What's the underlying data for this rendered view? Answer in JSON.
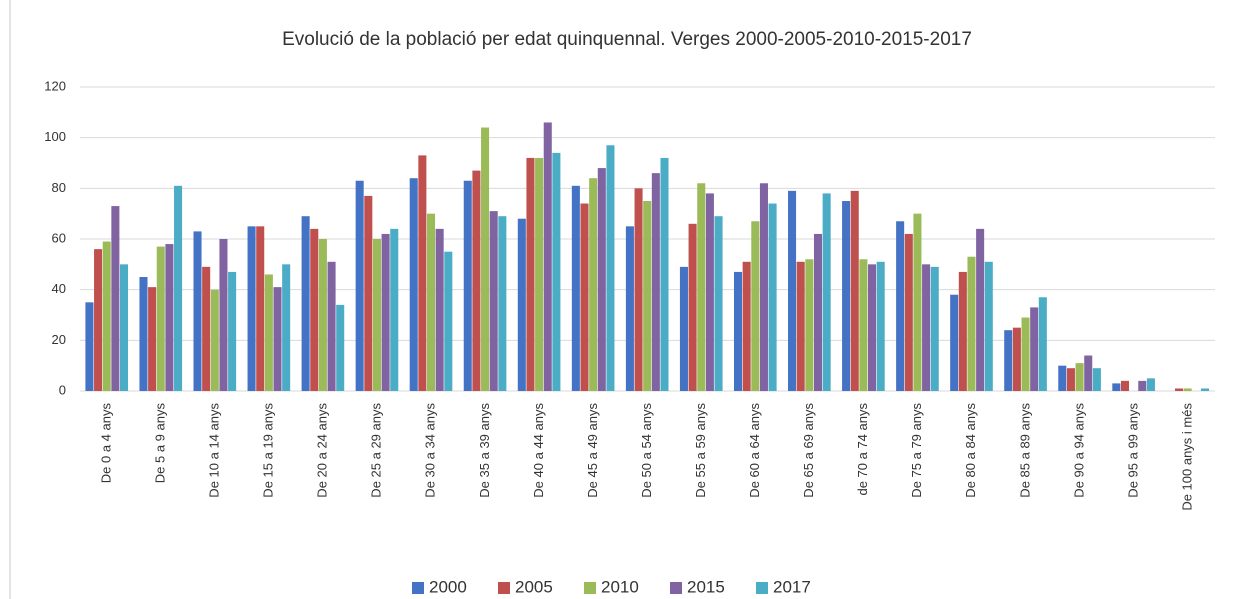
{
  "chart_data": {
    "type": "bar",
    "title": "Evolució de la població per edat quinquennal. Verges 2000-2005-2010-2015-2017",
    "categories": [
      "De 0 a 4 anys",
      "De 5 a 9 anys",
      "De 10 a 14 anys",
      "De 15 a 19 anys",
      "De 20 a 24 anys",
      "De 25 a 29 anys",
      "De 30 a 34 anys",
      "De 35 a 39 anys",
      "De 40 a 44 anys",
      "De 45 a 49 anys",
      "De 50 a 54 anys",
      "De 55 a 59 anys",
      "De 60 a 64 anys",
      "De 65 a 69 anys",
      "de 70 a 74 anys",
      "De 75 a 79 anys",
      "De 80 a 84 anys",
      "De 85 a 89 anys",
      "De 90 a 94 anys",
      "De 95 a 99 anys",
      "De 100 anys i més"
    ],
    "series": [
      {
        "name": "2000",
        "color": "#4472c4",
        "values": [
          35,
          45,
          63,
          65,
          69,
          83,
          84,
          83,
          68,
          81,
          65,
          49,
          47,
          79,
          75,
          67,
          38,
          24,
          10,
          3,
          0
        ]
      },
      {
        "name": "2005",
        "color": "#c0504d",
        "values": [
          56,
          41,
          49,
          65,
          64,
          77,
          93,
          87,
          92,
          74,
          80,
          66,
          51,
          51,
          79,
          62,
          47,
          25,
          9,
          4,
          1
        ]
      },
      {
        "name": "2010",
        "color": "#9bbb59",
        "values": [
          59,
          57,
          40,
          46,
          60,
          60,
          70,
          104,
          92,
          84,
          75,
          82,
          67,
          52,
          52,
          70,
          53,
          29,
          11,
          0,
          1
        ]
      },
      {
        "name": "2015",
        "color": "#8064a2",
        "values": [
          73,
          58,
          60,
          41,
          51,
          62,
          64,
          71,
          106,
          88,
          86,
          78,
          82,
          62,
          50,
          50,
          64,
          33,
          14,
          4,
          0
        ]
      },
      {
        "name": "2017",
        "color": "#4bacc6",
        "values": [
          50,
          81,
          47,
          50,
          34,
          64,
          55,
          69,
          94,
          97,
          92,
          69,
          74,
          78,
          51,
          49,
          51,
          37,
          9,
          5,
          1
        ]
      }
    ],
    "ylim": [
      0,
      120
    ],
    "yticks": [
      0,
      20,
      40,
      60,
      80,
      100,
      120
    ],
    "grid": true,
    "legend": "bottom"
  }
}
